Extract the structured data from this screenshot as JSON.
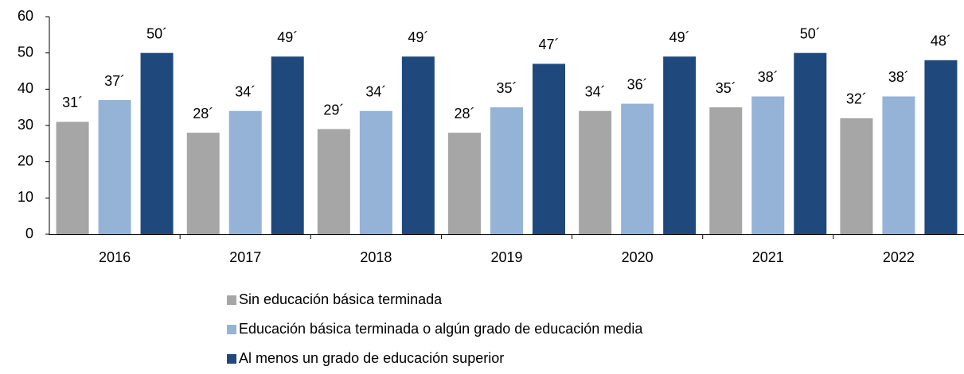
{
  "chart_data": {
    "type": "bar",
    "categories": [
      "2016",
      "2017",
      "2018",
      "2019",
      "2020",
      "2021",
      "2022"
    ],
    "series": [
      {
        "name": "Sin educación básica terminada",
        "color": "#a6a6a6",
        "values": [
          31,
          28,
          29,
          28,
          34,
          35,
          32
        ],
        "value_labels": [
          "31´",
          "28´",
          "29´",
          "28´",
          "34´",
          "35´",
          "32´"
        ]
      },
      {
        "name": "Educación básica terminada o algún grado de educación media",
        "color": "#95b3d7",
        "values": [
          37,
          34,
          34,
          35,
          36,
          38,
          38
        ],
        "value_labels": [
          "37´",
          "34´",
          "34´",
          "35´",
          "36´",
          "38´",
          "38´"
        ]
      },
      {
        "name": "Al menos un grado de educación superior",
        "color": "#1f497d",
        "values": [
          50,
          49,
          49,
          47,
          49,
          50,
          48
        ],
        "value_labels": [
          "50´",
          "49´",
          "49´",
          "47´",
          "49´",
          "50´",
          "48´"
        ]
      }
    ],
    "ylim": [
      0,
      60
    ],
    "yticks": [
      0,
      10,
      20,
      30,
      40,
      50,
      60
    ],
    "grid": false,
    "legend": "bottom"
  }
}
